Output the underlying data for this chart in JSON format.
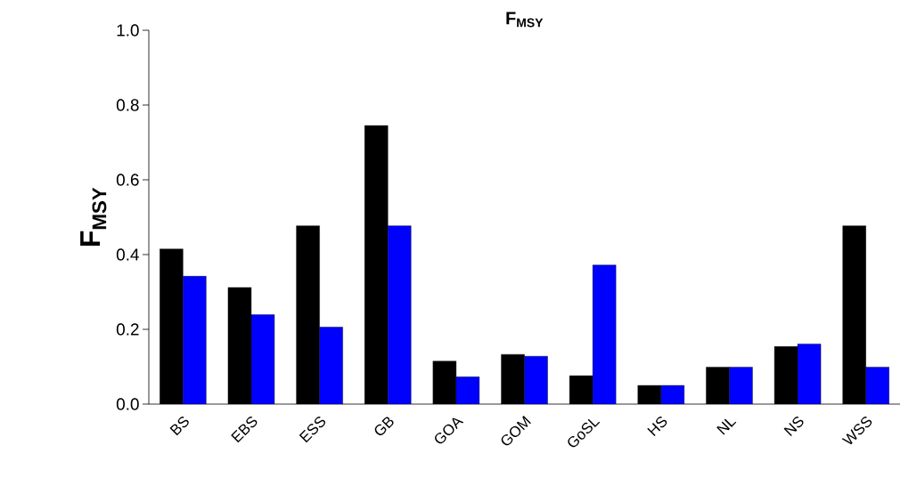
{
  "chart_data": {
    "type": "bar",
    "title": "F$_{MSY}$",
    "ylabel": "F$_{MSY}$",
    "categories": [
      "BS",
      "EBS",
      "ESS",
      "GB",
      "GOA",
      "GOM",
      "GoSL",
      "HS",
      "NL",
      "NS",
      "WSS"
    ],
    "series": [
      {
        "color": "#000000",
        "values": [
          0.415,
          0.312,
          0.477,
          0.745,
          0.115,
          0.133,
          0.076,
          0.05,
          0.099,
          0.154,
          0.477
        ]
      },
      {
        "color": "#0000ff",
        "values": [
          0.342,
          0.239,
          0.206,
          0.477,
          0.073,
          0.128,
          0.372,
          0.05,
          0.099,
          0.161,
          0.099
        ]
      }
    ],
    "ylim": [
      0,
      1.0
    ],
    "yticks": [
      {
        "value": 0,
        "label": "0.0"
      },
      {
        "value": 0.2,
        "label": "0.2"
      },
      {
        "value": 0.4,
        "label": "0.4"
      },
      {
        "value": 0.6,
        "label": "0.6"
      },
      {
        "value": 0.8,
        "label": "0.8"
      },
      {
        "value": 1.0,
        "label": "1.0"
      }
    ],
    "grid": false
  }
}
